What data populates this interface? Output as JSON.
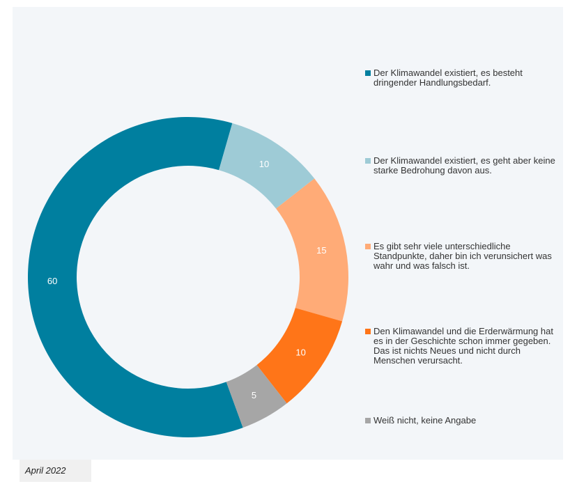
{
  "chart_data": {
    "type": "donut",
    "categories": [
      "Der Klimawandel existiert, es besteht dringender Handlungsbedarf.",
      "Der Klimawandel existiert, es geht aber keine starke Bedrohung davon aus.",
      "Es gibt sehr viele unterschiedliche Standpunkte, daher bin ich verunsichert was wahr und was falsch ist.",
      "Den Klimawandel und die Erderwärmung hat es in der Geschichte schon immer gegeben. Das ist nichts Neues und nicht durch Menschen verursacht.",
      "Weiß nicht, keine Angabe"
    ],
    "values": [
      60,
      10,
      15,
      10,
      5
    ],
    "colors": [
      "#007f9f",
      "#9ecbd6",
      "#ffab77",
      "#ff7518",
      "#a6a6a6"
    ],
    "legend": "right",
    "footnote": "April 2022"
  }
}
